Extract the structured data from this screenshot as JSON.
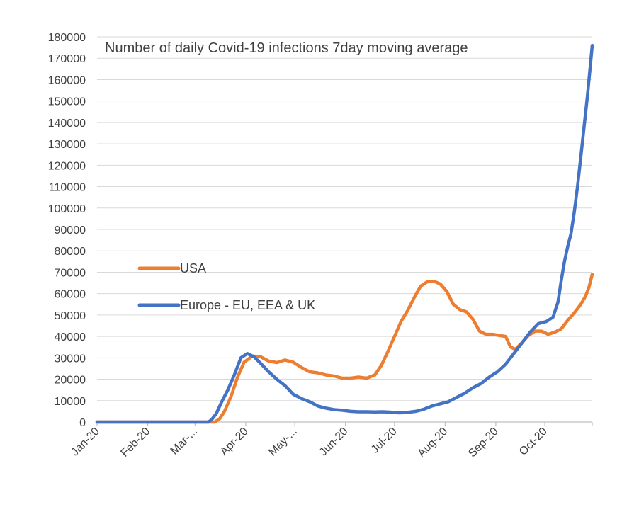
{
  "chart_data": {
    "type": "line",
    "title": "Number of daily Covid-19 infections 7day moving average",
    "xlabel": "",
    "ylabel": "",
    "ylim": [
      0,
      180000
    ],
    "yticks": [
      0,
      10000,
      20000,
      30000,
      40000,
      50000,
      60000,
      70000,
      80000,
      90000,
      100000,
      110000,
      120000,
      130000,
      140000,
      150000,
      160000,
      170000,
      180000
    ],
    "xlim": [
      0,
      303
    ],
    "xticks": [
      {
        "day": 0,
        "label": "Jan-20"
      },
      {
        "day": 31,
        "label": "Feb-20"
      },
      {
        "day": 60,
        "label": "Mar-..."
      },
      {
        "day": 91,
        "label": "Apr-20"
      },
      {
        "day": 121,
        "label": "May-..."
      },
      {
        "day": 152,
        "label": "Jun-20"
      },
      {
        "day": 182,
        "label": "Jul-20"
      },
      {
        "day": 213,
        "label": "Aug-20"
      },
      {
        "day": 244,
        "label": "Sep-20"
      },
      {
        "day": 274,
        "label": "Oct-20"
      }
    ],
    "grid": true,
    "legend_placement": "middle-left",
    "series": [
      {
        "name": "USA",
        "color": "#ED7D31",
        "points": [
          [
            0,
            0
          ],
          [
            60,
            0
          ],
          [
            72,
            0
          ],
          [
            75,
            1500
          ],
          [
            78,
            5000
          ],
          [
            82,
            12000
          ],
          [
            86,
            21000
          ],
          [
            90,
            28000
          ],
          [
            95,
            30800
          ],
          [
            100,
            30500
          ],
          [
            105,
            28500
          ],
          [
            110,
            27800
          ],
          [
            115,
            29000
          ],
          [
            120,
            28000
          ],
          [
            125,
            25500
          ],
          [
            130,
            23500
          ],
          [
            135,
            23000
          ],
          [
            140,
            22000
          ],
          [
            145,
            21500
          ],
          [
            150,
            20500
          ],
          [
            155,
            20500
          ],
          [
            160,
            21000
          ],
          [
            165,
            20500
          ],
          [
            170,
            22000
          ],
          [
            174,
            26500
          ],
          [
            178,
            33000
          ],
          [
            182,
            40000
          ],
          [
            186,
            47000
          ],
          [
            190,
            52000
          ],
          [
            194,
            58000
          ],
          [
            198,
            63500
          ],
          [
            202,
            65500
          ],
          [
            206,
            65800
          ],
          [
            210,
            64500
          ],
          [
            214,
            61000
          ],
          [
            218,
            55000
          ],
          [
            222,
            52500
          ],
          [
            226,
            51500
          ],
          [
            230,
            48000
          ],
          [
            234,
            42500
          ],
          [
            238,
            41000
          ],
          [
            242,
            41000
          ],
          [
            246,
            40500
          ],
          [
            250,
            40000
          ],
          [
            253,
            35000
          ],
          [
            256,
            34000
          ],
          [
            260,
            37000
          ],
          [
            264,
            40500
          ],
          [
            268,
            42500
          ],
          [
            272,
            42500
          ],
          [
            276,
            41000
          ],
          [
            280,
            42000
          ],
          [
            284,
            43500
          ],
          [
            288,
            47500
          ],
          [
            292,
            51000
          ],
          [
            296,
            55000
          ],
          [
            299,
            59000
          ],
          [
            301,
            63000
          ],
          [
            303,
            69000
          ]
        ]
      },
      {
        "name": "Europe - EU, EEA & UK",
        "color": "#4472C4",
        "points": [
          [
            0,
            0
          ],
          [
            68,
            0
          ],
          [
            70,
            1000
          ],
          [
            73,
            4000
          ],
          [
            76,
            9000
          ],
          [
            80,
            15000
          ],
          [
            84,
            22000
          ],
          [
            88,
            30000
          ],
          [
            92,
            32000
          ],
          [
            96,
            30500
          ],
          [
            100,
            27500
          ],
          [
            105,
            23500
          ],
          [
            110,
            20000
          ],
          [
            115,
            17000
          ],
          [
            120,
            13000
          ],
          [
            125,
            11000
          ],
          [
            130,
            9500
          ],
          [
            135,
            7500
          ],
          [
            140,
            6500
          ],
          [
            145,
            5800
          ],
          [
            150,
            5500
          ],
          [
            155,
            5000
          ],
          [
            160,
            4800
          ],
          [
            165,
            4800
          ],
          [
            170,
            4700
          ],
          [
            175,
            4800
          ],
          [
            180,
            4600
          ],
          [
            185,
            4300
          ],
          [
            190,
            4500
          ],
          [
            195,
            5000
          ],
          [
            200,
            6000
          ],
          [
            205,
            7500
          ],
          [
            210,
            8500
          ],
          [
            215,
            9500
          ],
          [
            220,
            11500
          ],
          [
            225,
            13500
          ],
          [
            230,
            16000
          ],
          [
            235,
            18000
          ],
          [
            240,
            21000
          ],
          [
            245,
            23500
          ],
          [
            250,
            27000
          ],
          [
            255,
            32000
          ],
          [
            260,
            37000
          ],
          [
            265,
            42000
          ],
          [
            270,
            46000
          ],
          [
            275,
            47000
          ],
          [
            279,
            49000
          ],
          [
            282,
            56000
          ],
          [
            284,
            66000
          ],
          [
            286,
            75000
          ],
          [
            288,
            82000
          ],
          [
            290,
            88000
          ],
          [
            292,
            98000
          ],
          [
            294,
            110000
          ],
          [
            296,
            124000
          ],
          [
            298,
            138000
          ],
          [
            300,
            152000
          ],
          [
            302,
            168000
          ],
          [
            303,
            176000
          ]
        ]
      }
    ]
  }
}
